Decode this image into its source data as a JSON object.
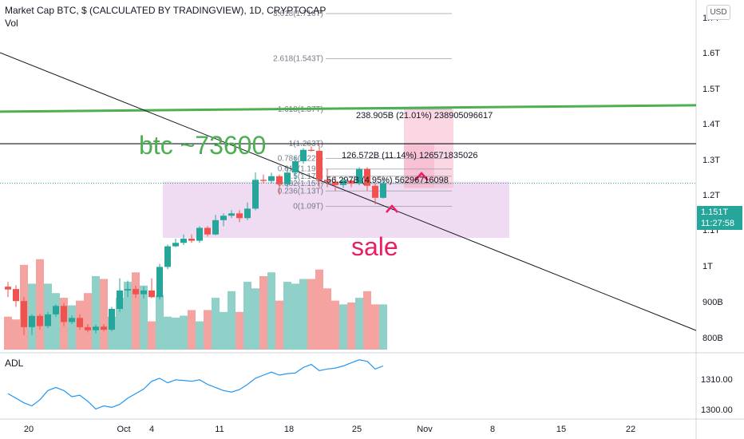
{
  "header": {
    "title": "Market Cap BTC, $ (CALCULATED BY TRADINGVIEW), 1D, CRYPTOCAP",
    "vol_label": "Vol",
    "currency_button": "USD"
  },
  "price_tag": {
    "price": "1.151T",
    "countdown": "11:27:58"
  },
  "colors": {
    "up": "#26a69a",
    "down": "#ef5350",
    "up_volume": "#8fd1c8",
    "down_volume": "#f4a3a0",
    "green_level": "#4caf50",
    "annotation": "#e91e63",
    "fib_text": "#787b86",
    "adl_line": "#2196f3",
    "zone_fill": "#e1bee7",
    "target_fill": "#f8bbd0"
  },
  "annotations": {
    "level_label": "btc ~73600",
    "sale_label": "sale",
    "measure_1": "238.905B (21.01%) 238905096617",
    "measure_2": "126.572B (11.14%) 126571835026",
    "measure_3": "56.297B (4.95%) 56296716098"
  },
  "fib_levels": [
    {
      "label": "3.618(1.716T)",
      "value": 1.716
    },
    {
      "label": "2.618(1.543T)",
      "value": 1.543
    },
    {
      "label": "1.618(1.37T)",
      "value": 1.37
    },
    {
      "label": "1(1.263T)",
      "value": 1.263
    },
    {
      "label": "0.786(1.22T)",
      "value": 1.22
    },
    {
      "label": "0.618(1.19T)",
      "value": 1.19
    },
    {
      "label": "0.5(1.17T)",
      "value": 1.17
    },
    {
      "label": "0.382(1.15T)",
      "value": 1.15
    },
    {
      "label": "0.236(1.13T)",
      "value": 1.13
    },
    {
      "label": "0(1.09T)",
      "value": 1.09
    }
  ],
  "chart_data": {
    "type": "candlestick",
    "title": "Market Cap BTC, $ (CALCULATED BY TRADINGVIEW), 1D, CRYPTOCAP",
    "y_axis": {
      "scale": "log",
      "ticks": [
        "1.7T",
        "1.6T",
        "1.5T",
        "1.4T",
        "1.3T",
        "1.2T",
        "1.1T",
        "1T",
        "900B",
        "800B"
      ],
      "range": [
        0.78,
        1.78
      ]
    },
    "x_axis": {
      "ticks": [
        "20",
        "Oct",
        "4",
        "11",
        "18",
        "25",
        "Nov",
        "8",
        "15",
        "22"
      ]
    },
    "candles": [
      {
        "o": 0.902,
        "h": 0.912,
        "l": 0.88,
        "c": 0.896
      },
      {
        "o": 0.897,
        "h": 0.905,
        "l": 0.86,
        "c": 0.872
      },
      {
        "o": 0.872,
        "h": 0.88,
        "l": 0.805,
        "c": 0.82
      },
      {
        "o": 0.82,
        "h": 0.845,
        "l": 0.805,
        "c": 0.842
      },
      {
        "o": 0.842,
        "h": 0.846,
        "l": 0.815,
        "c": 0.822
      },
      {
        "o": 0.822,
        "h": 0.85,
        "l": 0.818,
        "c": 0.845
      },
      {
        "o": 0.845,
        "h": 0.865,
        "l": 0.84,
        "c": 0.862
      },
      {
        "o": 0.862,
        "h": 0.868,
        "l": 0.822,
        "c": 0.83
      },
      {
        "o": 0.83,
        "h": 0.843,
        "l": 0.826,
        "c": 0.838
      },
      {
        "o": 0.838,
        "h": 0.845,
        "l": 0.815,
        "c": 0.82
      },
      {
        "o": 0.82,
        "h": 0.826,
        "l": 0.81,
        "c": 0.814
      },
      {
        "o": 0.814,
        "h": 0.825,
        "l": 0.808,
        "c": 0.821
      },
      {
        "o": 0.821,
        "h": 0.826,
        "l": 0.812,
        "c": 0.815
      },
      {
        "o": 0.815,
        "h": 0.86,
        "l": 0.812,
        "c": 0.856
      },
      {
        "o": 0.856,
        "h": 0.92,
        "l": 0.85,
        "c": 0.894
      },
      {
        "o": 0.894,
        "h": 0.915,
        "l": 0.88,
        "c": 0.897
      },
      {
        "o": 0.897,
        "h": 0.904,
        "l": 0.878,
        "c": 0.886
      },
      {
        "o": 0.886,
        "h": 0.902,
        "l": 0.877,
        "c": 0.894
      },
      {
        "o": 0.894,
        "h": 0.92,
        "l": 0.878,
        "c": 0.88
      },
      {
        "o": 0.88,
        "h": 0.952,
        "l": 0.875,
        "c": 0.945
      },
      {
        "o": 0.945,
        "h": 0.996,
        "l": 0.94,
        "c": 0.992
      },
      {
        "o": 0.992,
        "h": 1.01,
        "l": 0.99,
        "c": 1.0
      },
      {
        "o": 1.0,
        "h": 1.02,
        "l": 0.995,
        "c": 1.01
      },
      {
        "o": 1.01,
        "h": 1.02,
        "l": 1.0,
        "c": 1.005
      },
      {
        "o": 1.005,
        "h": 1.04,
        "l": 1.0,
        "c": 1.036
      },
      {
        "o": 1.036,
        "h": 1.04,
        "l": 1.015,
        "c": 1.02
      },
      {
        "o": 1.02,
        "h": 1.068,
        "l": 1.018,
        "c": 1.055
      },
      {
        "o": 1.055,
        "h": 1.072,
        "l": 1.04,
        "c": 1.066
      },
      {
        "o": 1.066,
        "h": 1.08,
        "l": 1.06,
        "c": 1.072
      },
      {
        "o": 1.072,
        "h": 1.08,
        "l": 1.05,
        "c": 1.06
      },
      {
        "o": 1.06,
        "h": 1.1,
        "l": 1.055,
        "c": 1.084
      },
      {
        "o": 1.084,
        "h": 1.18,
        "l": 1.08,
        "c": 1.16
      },
      {
        "o": 1.16,
        "h": 1.175,
        "l": 1.15,
        "c": 1.157
      },
      {
        "o": 1.157,
        "h": 1.18,
        "l": 1.15,
        "c": 1.17
      },
      {
        "o": 1.17,
        "h": 1.175,
        "l": 1.12,
        "c": 1.148
      },
      {
        "o": 1.148,
        "h": 1.195,
        "l": 1.14,
        "c": 1.18
      },
      {
        "o": 1.18,
        "h": 1.225,
        "l": 1.16,
        "c": 1.212
      },
      {
        "o": 1.212,
        "h": 1.25,
        "l": 1.205,
        "c": 1.245
      },
      {
        "o": 1.245,
        "h": 1.255,
        "l": 1.24,
        "c": 1.242
      },
      {
        "o": 1.242,
        "h": 1.26,
        "l": 1.14,
        "c": 1.16
      },
      {
        "o": 1.16,
        "h": 1.19,
        "l": 1.14,
        "c": 1.155
      },
      {
        "o": 1.155,
        "h": 1.17,
        "l": 1.13,
        "c": 1.146
      },
      {
        "o": 1.146,
        "h": 1.165,
        "l": 1.138,
        "c": 1.158
      },
      {
        "o": 1.158,
        "h": 1.162,
        "l": 1.14,
        "c": 1.15
      },
      {
        "o": 1.15,
        "h": 1.195,
        "l": 1.145,
        "c": 1.19
      },
      {
        "o": 1.19,
        "h": 1.195,
        "l": 1.13,
        "c": 1.144
      },
      {
        "o": 1.144,
        "h": 1.15,
        "l": 1.095,
        "c": 1.112
      },
      {
        "o": 1.112,
        "h": 1.165,
        "l": 1.11,
        "c": 1.151
      }
    ],
    "volume": {
      "range": [
        0,
        1
      ],
      "values": [
        0.35,
        0.32,
        0.9,
        0.7,
        0.96,
        0.7,
        0.6,
        0.55,
        0.47,
        0.52,
        0.6,
        0.78,
        0.75,
        0.35,
        0.55,
        0.72,
        0.82,
        0.68,
        0.3,
        0.58,
        0.35,
        0.34,
        0.36,
        0.42,
        0.3,
        0.42,
        0.55,
        0.4,
        0.62,
        0.4,
        0.72,
        0.65,
        0.78,
        0.82,
        0.52,
        0.72,
        0.7,
        0.75,
        0.75,
        0.85,
        0.65,
        0.52,
        0.48,
        0.5,
        0.55,
        0.62,
        0.48,
        0.48
      ]
    },
    "adl": {
      "title": "ADL",
      "y_ticks": [
        "1310.00",
        "1300.00"
      ],
      "range": [
        1298,
        1318
      ],
      "values": [
        1305.5,
        1304,
        1302.5,
        1301.5,
        1303.5,
        1306.5,
        1307.5,
        1306.5,
        1304.5,
        1305,
        1303,
        1300.5,
        1301.5,
        1301,
        1302,
        1304,
        1305.5,
        1307,
        1309.5,
        1310.5,
        1309,
        1310,
        1309.8,
        1309.5,
        1310,
        1308.5,
        1307.5,
        1306.5,
        1306,
        1306.8,
        1308.5,
        1310.5,
        1311.5,
        1312.5,
        1311.5,
        1312,
        1312.2,
        1314,
        1315,
        1313,
        1313.5,
        1313.8,
        1314.5,
        1315.5,
        1316.5,
        1316,
        1313.5,
        1314.5
      ]
    }
  }
}
